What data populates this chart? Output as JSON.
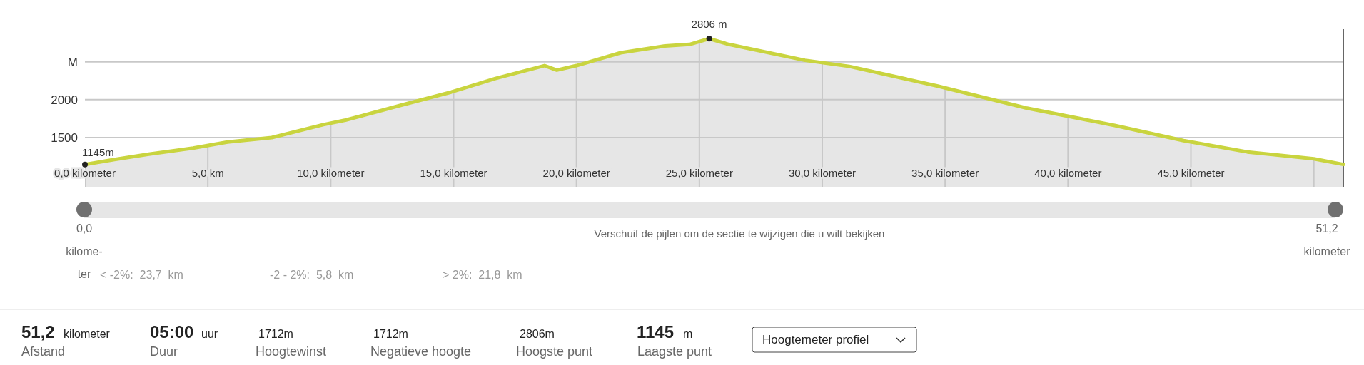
{
  "chart_data": {
    "type": "area",
    "x": [
      0,
      1.2,
      2.6,
      4.4,
      5.8,
      7.6,
      9.7,
      10.6,
      12.9,
      14.9,
      16.7,
      18.7,
      19.2,
      20.0,
      21.8,
      23.6,
      24.6,
      25.4,
      26.2,
      29.3,
      31.1,
      34.7,
      38.3,
      41.9,
      44.7,
      47.3,
      50.0,
      51.2
    ],
    "series": [
      {
        "color": "#c9d43f",
        "values": [
          1145,
          1210,
          1280,
          1360,
          1440,
          1500,
          1670,
          1730,
          1930,
          2100,
          2280,
          2450,
          2390,
          2450,
          2620,
          2710,
          2730,
          2806,
          2730,
          2520,
          2440,
          2180,
          1890,
          1660,
          1460,
          1310,
          1220,
          1145
        ]
      }
    ],
    "xlim": [
      0,
      51.2
    ],
    "xticks": [
      {
        "value": 0,
        "label": "0,0 kilometer"
      },
      {
        "value": 5,
        "label": "5,0 km"
      },
      {
        "value": 10,
        "label": "10,0 kilometer"
      },
      {
        "value": 15,
        "label": "15,0 kilometer"
      },
      {
        "value": 20,
        "label": "20,0 kilometer"
      },
      {
        "value": 25,
        "label": "25,0 kilometer"
      },
      {
        "value": 30,
        "label": "30,0 kilometer"
      },
      {
        "value": 35,
        "label": "35,0 kilometer"
      },
      {
        "value": 40,
        "label": "40,0 kilometer"
      },
      {
        "value": 45,
        "label": "45,0 kilometer"
      },
      {
        "value": 50,
        "label": null
      }
    ],
    "ylim": [
      850,
      2940
    ],
    "yticks": [
      1500,
      2000,
      {
        "value": 2500,
        "label": "M"
      }
    ],
    "grid": true,
    "annotations": [
      {
        "text": "1145m",
        "x": 0,
        "y": 1145
      },
      {
        "text": "2806 m",
        "x": 25.4,
        "y": 2806
      },
      "Verschuif de pijlen om de sectie te wijzigen die u wilt bekijken",
      "0,0",
      "kilome-",
      "ter",
      "51,2",
      "kilometer",
      "< -2%:  23,7  km",
      "-2 - 2%:  5,8  km",
      "> 2%:  21,8  km",
      "51,2",
      "kilometer",
      "Afstand",
      "05:00",
      "uur",
      "Duur",
      "1712m",
      "Hoogtewinst",
      "1712m",
      "Negatieve hoogte",
      "2806m",
      "Hoogste punt",
      "1145",
      "m",
      "Laagste punt",
      "Hoogtemeter profiel"
    ]
  }
}
